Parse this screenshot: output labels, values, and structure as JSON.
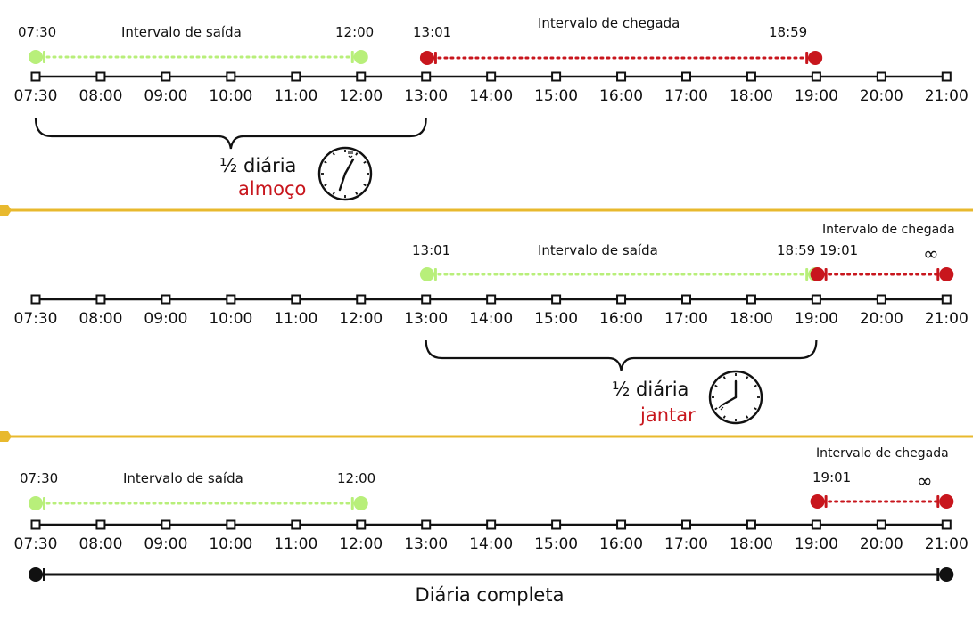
{
  "colors": {
    "green": "#b8ef7a",
    "red": "#c8161d",
    "line": "#111111",
    "gold": "#e8b92e",
    "text_red": "#c8161d"
  },
  "ticks": [
    "07:30",
    "08:00",
    "09:00",
    "10:00",
    "11:00",
    "12:00",
    "13:00",
    "14:00",
    "15:00",
    "16:00",
    "17:00",
    "18:00",
    "19:00",
    "20:00",
    "21:00"
  ],
  "panels": [
    {
      "departure": {
        "label": "Intervalo de saída",
        "start": "07:30",
        "end": "12:00"
      },
      "arrival": {
        "label": "Intervalo de chegada",
        "start": "13:01",
        "end": "18:59",
        "end_symbol": ""
      },
      "bracket": {
        "from": "07:30",
        "to": "13:00"
      },
      "note": {
        "title": "½ diária",
        "meal": "almoço",
        "clock_icon": "clock-fork-knife-icon"
      }
    },
    {
      "departure": {
        "label": "Intervalo de saída",
        "start": "13:01",
        "end": "18:59"
      },
      "arrival": {
        "label": "Intervalo de chegada",
        "start": "19:01",
        "end": "21:00",
        "end_symbol": "∞"
      },
      "bracket": {
        "from": "13:00",
        "to": "19:00"
      },
      "note": {
        "title": "½ diária",
        "meal": "jantar",
        "clock_icon": "clock-fork-knife-icon"
      }
    },
    {
      "departure": {
        "label": "Intervalo de saída",
        "start": "07:30",
        "end": "12:00"
      },
      "arrival": {
        "label": "Intervalo de chegada",
        "start": "19:01",
        "end": "21:00",
        "end_symbol": "∞"
      },
      "full_day": {
        "label": "Diária completa",
        "from": "07:30",
        "to": "21:00"
      }
    }
  ]
}
